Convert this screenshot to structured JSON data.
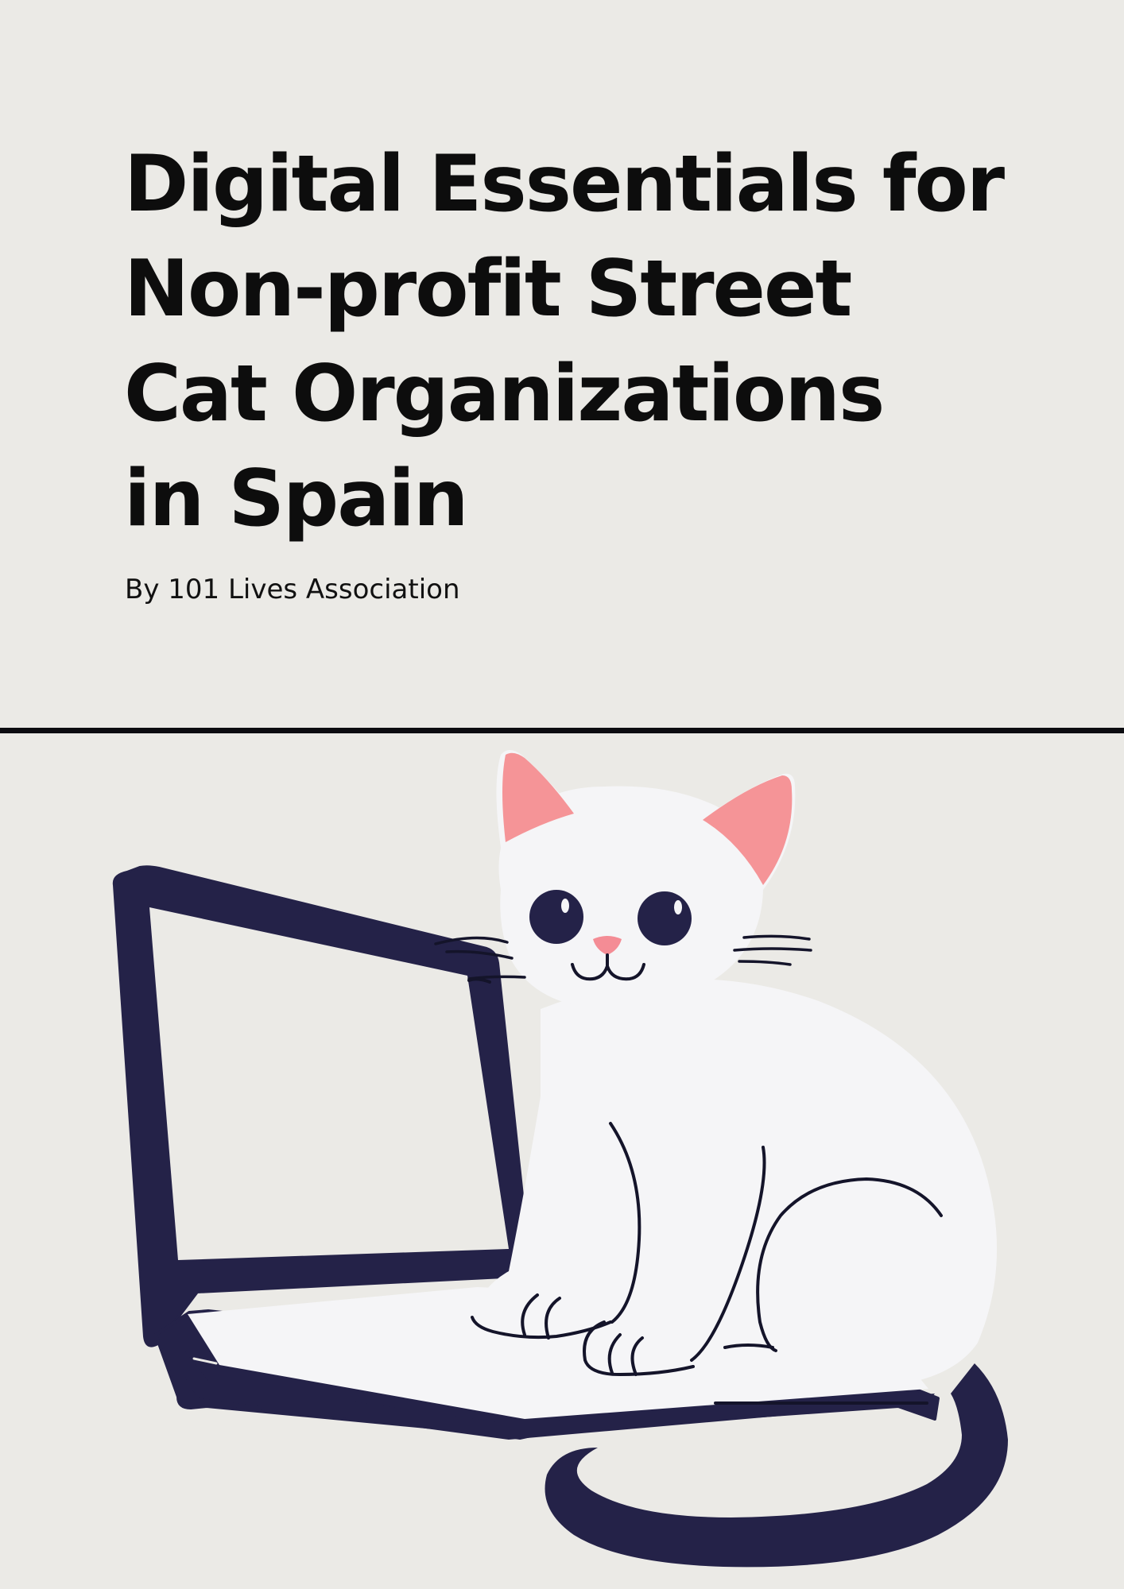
{
  "document": {
    "title_lines": [
      "Digital Essentials for",
      "Non-profit Street",
      "Cat Organizations",
      "in Spain"
    ],
    "author": "By 101 Lives Association"
  },
  "illustration": {
    "subject": "cat-on-laptop",
    "colors": {
      "background": "#ebeae6",
      "laptop": "#242248",
      "cat_body": "#f5f5f7",
      "ear_inner": "#f59497",
      "nose": "#f48c95",
      "line": "#14142a"
    }
  }
}
